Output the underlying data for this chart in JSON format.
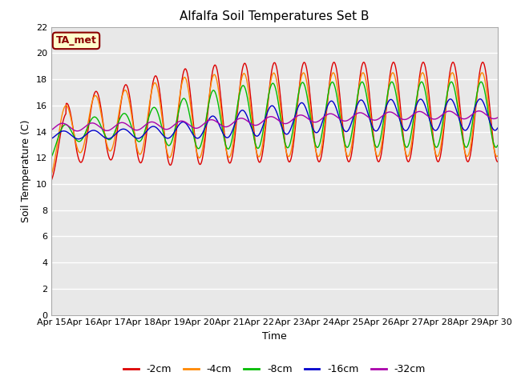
{
  "title": "Alfalfa Soil Temperatures Set B",
  "xlabel": "Time",
  "ylabel": "Soil Temperature (C)",
  "ylim": [
    0,
    22
  ],
  "yticks": [
    0,
    2,
    4,
    6,
    8,
    10,
    12,
    14,
    16,
    18,
    20,
    22
  ],
  "annotation_text": "TA_met",
  "annotation_bg": "#ffffcc",
  "annotation_border": "#8b0000",
  "annotation_text_color": "#8b0000",
  "colors": {
    "-2cm": "#dd0000",
    "-4cm": "#ff8800",
    "-8cm": "#00bb00",
    "-16cm": "#0000cc",
    "-32cm": "#aa00aa"
  },
  "x_tick_labels": [
    "Apr 15",
    "Apr 16",
    "Apr 17",
    "Apr 18",
    "Apr 19",
    "Apr 20",
    "Apr 21",
    "Apr 22",
    "Apr 23",
    "Apr 24",
    "Apr 25",
    "Apr 26",
    "Apr 27",
    "Apr 28",
    "Apr 29",
    "Apr 30"
  ],
  "num_days": 15,
  "plot_bg": "#e8e8e8",
  "fig_bg": "#ffffff"
}
